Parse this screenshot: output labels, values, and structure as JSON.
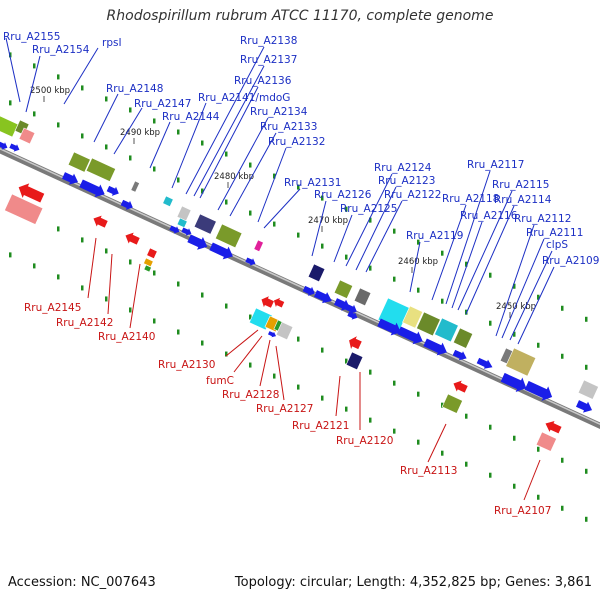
{
  "title": "Rhodospirillum rubrum ATCC 11170, complete genome",
  "footer": {
    "accession": "Accession: NC_007643",
    "topology": "Topology: circular; Length: 4,352,825 bp; Genes: 3,861"
  },
  "colors": {
    "backbone": "#808080",
    "top_label": "#1c2fc4",
    "bottom_label": "#c81414",
    "forward_gene": "#1a1ee8",
    "reverse_gene": "#e81a1a",
    "dot": "#1f8c1f"
  },
  "kbp_ticks": [
    "2500 kbp",
    "2490 kbp",
    "2480 kbp",
    "2470 kbp",
    "2460 kbp",
    "2450 kbp"
  ],
  "top_labels": [
    "Rru_A2155",
    "Rru_A2154",
    "rpsI",
    "Rru_A2148",
    "Rru_A2147",
    "Rru_A2144",
    "Rru_A2141/mdoG",
    "Rru_A2138",
    "Rru_A2137",
    "Rru_A2136",
    "Rru_A2134",
    "Rru_A2133",
    "Rru_A2132",
    "Rru_A2131",
    "Rru_A2126",
    "Rru_A2125",
    "Rru_A2124",
    "Rru_A2123",
    "Rru_A2122",
    "Rru_A2119",
    "Rru_A2118",
    "Rru_A2117",
    "Rru_A2116",
    "Rru_A2115",
    "Rru_A2114",
    "Rru_A2112",
    "Rru_A2111",
    "clpS",
    "Rru_A2109"
  ],
  "bottom_labels": [
    "Rru_A2145",
    "Rru_A2142",
    "Rru_A2140",
    "Rru_A2130",
    "fumC",
    "Rru_A2128",
    "Rru_A2127",
    "Rru_A2121",
    "Rru_A2120",
    "Rru_A2113",
    "Rru_A2107"
  ]
}
